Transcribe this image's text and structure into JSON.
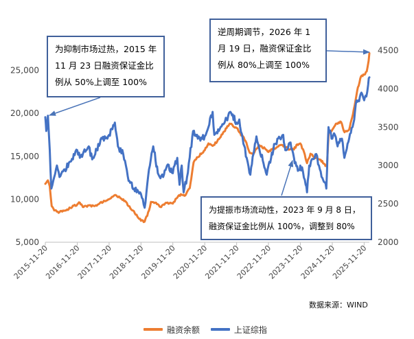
{
  "chart_data": {
    "type": "line",
    "title": "",
    "y_left": {
      "range": [
        5000,
        30000
      ],
      "ticks": [
        "5,000",
        "10,000",
        "15,000",
        "20,000",
        "25,000"
      ]
    },
    "y_right": {
      "range": [
        2000,
        4800
      ],
      "ticks": [
        "2000",
        "2500",
        "3000",
        "3500",
        "4000",
        "4500"
      ]
    },
    "x_ticks": [
      "2015-11-20",
      "2016-11-20",
      "2017-11-20",
      "2018-11-20",
      "2019-11-20",
      "2020-11-20",
      "2021-11-20",
      "2022-11-20",
      "2023-11-20",
      "2024-11-20",
      "2025-11-20"
    ],
    "grid": false,
    "legend_position": "bottom",
    "series": [
      {
        "name": "融资余额",
        "axis": "left",
        "color": "#ed7d31",
        "points": [
          [
            "2015-11-20",
            11800
          ],
          [
            "2015-12-20",
            12200
          ],
          [
            "2016-01-10",
            11500
          ],
          [
            "2016-02-01",
            9200
          ],
          [
            "2016-03-01",
            8700
          ],
          [
            "2016-05-01",
            8500
          ],
          [
            "2016-07-01",
            8700
          ],
          [
            "2016-09-01",
            9000
          ],
          [
            "2016-11-20",
            9400
          ],
          [
            "2016-12-20",
            9600
          ],
          [
            "2017-02-01",
            9100
          ],
          [
            "2017-04-01",
            9300
          ],
          [
            "2017-06-01",
            9200
          ],
          [
            "2017-08-01",
            9500
          ],
          [
            "2017-10-01",
            9800
          ],
          [
            "2017-11-20",
            10000
          ],
          [
            "2018-01-01",
            10300
          ],
          [
            "2018-02-01",
            10500
          ],
          [
            "2018-04-01",
            10100
          ],
          [
            "2018-06-01",
            9700
          ],
          [
            "2018-08-01",
            8800
          ],
          [
            "2018-10-01",
            8200
          ],
          [
            "2018-11-20",
            7500
          ],
          [
            "2019-01-01",
            7400
          ],
          [
            "2019-02-20",
            8700
          ],
          [
            "2019-03-15",
            9700
          ],
          [
            "2019-05-01",
            9600
          ],
          [
            "2019-07-01",
            9100
          ],
          [
            "2019-09-01",
            9600
          ],
          [
            "2019-11-20",
            9500
          ],
          [
            "2020-01-01",
            10100
          ],
          [
            "2020-02-20",
            10600
          ],
          [
            "2020-04-01",
            10400
          ],
          [
            "2020-06-01",
            11300
          ],
          [
            "2020-07-15",
            14300
          ],
          [
            "2020-09-01",
            14900
          ],
          [
            "2020-11-20",
            15700
          ],
          [
            "2021-01-01",
            16500
          ],
          [
            "2021-03-01",
            16300
          ],
          [
            "2021-05-01",
            17000
          ],
          [
            "2021-07-01",
            17900
          ],
          [
            "2021-09-01",
            18800
          ],
          [
            "2021-11-20",
            18300
          ],
          [
            "2022-01-01",
            17700
          ],
          [
            "2022-03-01",
            16800
          ],
          [
            "2022-04-20",
            15400
          ],
          [
            "2022-06-01",
            15300
          ],
          [
            "2022-08-01",
            16300
          ],
          [
            "2022-09-01",
            16200
          ],
          [
            "2022-11-20",
            15500
          ],
          [
            "2023-01-01",
            15800
          ],
          [
            "2023-03-01",
            16100
          ],
          [
            "2023-05-01",
            16300
          ],
          [
            "2023-07-01",
            15900
          ],
          [
            "2023-09-08",
            15800
          ],
          [
            "2023-10-15",
            16400
          ],
          [
            "2023-11-20",
            16500
          ],
          [
            "2024-01-01",
            15500
          ],
          [
            "2024-02-05",
            14200
          ],
          [
            "2024-03-15",
            15300
          ],
          [
            "2024-05-01",
            14900
          ],
          [
            "2024-07-01",
            14600
          ],
          [
            "2024-09-20",
            13800
          ],
          [
            "2024-10-10",
            17800
          ],
          [
            "2024-11-20",
            18100
          ],
          [
            "2025-01-01",
            18800
          ],
          [
            "2025-03-01",
            19000
          ],
          [
            "2025-04-10",
            17800
          ],
          [
            "2025-06-01",
            18100
          ],
          [
            "2025-07-15",
            19900
          ],
          [
            "2025-09-01",
            22600
          ],
          [
            "2025-10-15",
            24300
          ],
          [
            "2025-11-20",
            24500
          ],
          [
            "2025-12-20",
            24900
          ],
          [
            "2026-01-10",
            26100
          ],
          [
            "2026-01-19",
            27000
          ]
        ]
      },
      {
        "name": "上证综指",
        "axis": "right",
        "color": "#4472c4",
        "points": [
          [
            "2015-11-20",
            3630
          ],
          [
            "2015-12-01",
            3450
          ],
          [
            "2015-12-20",
            3650
          ],
          [
            "2016-01-10",
            3200
          ],
          [
            "2016-01-28",
            2700
          ],
          [
            "2016-03-01",
            2850
          ],
          [
            "2016-04-01",
            3000
          ],
          [
            "2016-05-01",
            2850
          ],
          [
            "2016-07-01",
            2950
          ],
          [
            "2016-09-01",
            3050
          ],
          [
            "2016-11-20",
            3200
          ],
          [
            "2016-12-20",
            3100
          ],
          [
            "2017-02-01",
            3180
          ],
          [
            "2017-04-01",
            3250
          ],
          [
            "2017-05-10",
            3080
          ],
          [
            "2017-07-01",
            3200
          ],
          [
            "2017-09-01",
            3350
          ],
          [
            "2017-11-20",
            3400
          ],
          [
            "2018-01-25",
            3560
          ],
          [
            "2018-03-01",
            3250
          ],
          [
            "2018-05-01",
            3150
          ],
          [
            "2018-07-01",
            2800
          ],
          [
            "2018-09-01",
            2700
          ],
          [
            "2018-11-20",
            2630
          ],
          [
            "2019-01-01",
            2450
          ],
          [
            "2019-02-20",
            2950
          ],
          [
            "2019-04-10",
            3250
          ],
          [
            "2019-06-01",
            2900
          ],
          [
            "2019-08-01",
            2850
          ],
          [
            "2019-09-15",
            3000
          ],
          [
            "2019-11-20",
            2900
          ],
          [
            "2020-01-10",
            3100
          ],
          [
            "2020-02-05",
            2750
          ],
          [
            "2020-03-01",
            3000
          ],
          [
            "2020-03-23",
            2650
          ],
          [
            "2020-05-01",
            2850
          ],
          [
            "2020-07-10",
            3450
          ],
          [
            "2020-09-01",
            3350
          ],
          [
            "2020-11-20",
            3380
          ],
          [
            "2021-01-01",
            3500
          ],
          [
            "2021-02-18",
            3700
          ],
          [
            "2021-03-10",
            3400
          ],
          [
            "2021-05-01",
            3450
          ],
          [
            "2021-07-01",
            3550
          ],
          [
            "2021-09-10",
            3700
          ],
          [
            "2021-11-20",
            3560
          ],
          [
            "2021-12-20",
            3600
          ],
          [
            "2022-01-28",
            3360
          ],
          [
            "2022-03-15",
            3100
          ],
          [
            "2022-04-26",
            2880
          ],
          [
            "2022-06-01",
            3150
          ],
          [
            "2022-07-05",
            3380
          ],
          [
            "2022-08-01",
            3250
          ],
          [
            "2022-10-31",
            2880
          ],
          [
            "2022-11-20",
            3000
          ],
          [
            "2022-12-20",
            3100
          ],
          [
            "2023-02-01",
            3280
          ],
          [
            "2023-05-08",
            3400
          ],
          [
            "2023-06-01",
            3200
          ],
          [
            "2023-07-31",
            3300
          ],
          [
            "2023-09-08",
            3100
          ],
          [
            "2023-10-23",
            2930
          ],
          [
            "2023-11-20",
            3000
          ],
          [
            "2023-12-20",
            2920
          ],
          [
            "2024-01-20",
            2750
          ],
          [
            "2024-02-05",
            2650
          ],
          [
            "2024-03-01",
            3000
          ],
          [
            "2024-05-20",
            3150
          ],
          [
            "2024-07-01",
            2950
          ],
          [
            "2024-09-13",
            2700
          ],
          [
            "2024-10-08",
            3500
          ],
          [
            "2024-11-20",
            3350
          ],
          [
            "2024-12-20",
            3400
          ],
          [
            "2025-01-20",
            3250
          ],
          [
            "2025-03-10",
            3350
          ],
          [
            "2025-04-08",
            3100
          ],
          [
            "2025-06-01",
            3350
          ],
          [
            "2025-07-20",
            3550
          ],
          [
            "2025-08-25",
            3850
          ],
          [
            "2025-09-15",
            3850
          ],
          [
            "2025-10-20",
            3950
          ],
          [
            "2025-11-20",
            3850
          ],
          [
            "2025-12-15",
            3900
          ],
          [
            "2026-01-05",
            4050
          ],
          [
            "2026-01-19",
            4150
          ]
        ]
      }
    ],
    "annotations": [
      {
        "lines": [
          "为抑制市场过热，2015 年",
          "11 月 23 日融资保证金比",
          "例从 50%上调至 100%"
        ]
      },
      {
        "lines": [
          "逆周期调节，2026 年 1",
          "月 19 日，融资保证金比",
          "例从 80%上调至 100%"
        ]
      },
      {
        "lines": [
          "为提振市场流动性，2023 年 9 月 8 日，",
          "融资保证金比例从 100%，调整到 80%"
        ]
      }
    ],
    "source": "数据来源：WIND"
  }
}
